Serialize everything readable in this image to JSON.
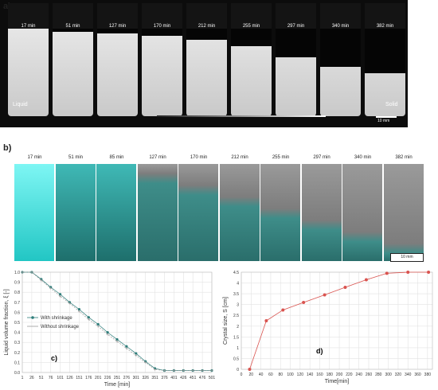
{
  "panel_labels": {
    "a": "a)",
    "b": "b)",
    "c": "c)",
    "d": "d)"
  },
  "panel_a": {
    "times": [
      "17 min",
      "51 min",
      "127 min",
      "170 min",
      "212 min",
      "255 min",
      "297 min",
      "340 min",
      "382 min"
    ],
    "liquid_label": "Liquid",
    "solid_label": "Solid",
    "scale_label": "10 mm"
  },
  "panel_b": {
    "times": [
      "17 min",
      "51 min",
      "85 min",
      "127 min",
      "170 min",
      "212 min",
      "255 min",
      "297 min",
      "340 min",
      "382 min"
    ],
    "scale_label": "10 mm"
  },
  "chart_data": [
    {
      "type": "line",
      "ylabel": "Liquid volume fraction, ξ [-]",
      "xlabel": "Time [min]",
      "ylim": [
        0,
        1.0
      ],
      "yticks": [
        "0.0",
        "0.1",
        "0.2",
        "0.3",
        "0.4",
        "0.5",
        "0.6",
        "0.7",
        "0.8",
        "0.9",
        "1.0"
      ],
      "xticks": [
        "1",
        "26",
        "51",
        "76",
        "101",
        "126",
        "151",
        "176",
        "201",
        "226",
        "251",
        "276",
        "301",
        "326",
        "351",
        "376",
        "401",
        "426",
        "451",
        "476",
        "501"
      ],
      "legend": "left-middle",
      "grid": true,
      "series": [
        {
          "name": "With shrinkage",
          "color": "#2e7d7a",
          "marker": "dot",
          "x": [
            1,
            26,
            51,
            76,
            101,
            126,
            151,
            176,
            201,
            226,
            251,
            276,
            301,
            326,
            351,
            376,
            401,
            426,
            451,
            476,
            501
          ],
          "values": [
            1.0,
            1.0,
            0.93,
            0.85,
            0.78,
            0.7,
            0.63,
            0.55,
            0.48,
            0.4,
            0.33,
            0.26,
            0.19,
            0.11,
            0.04,
            0.02,
            0.02,
            0.02,
            0.02,
            0.02,
            0.02
          ]
        },
        {
          "name": "Without shrinkage",
          "color": "#9a9a9a",
          "marker": "plus",
          "x": [
            1,
            26,
            51,
            76,
            101,
            126,
            151,
            176,
            201,
            226,
            251,
            276,
            301,
            326,
            351,
            376,
            401,
            426,
            451,
            476,
            501
          ],
          "values": [
            1.0,
            1.0,
            0.92,
            0.84,
            0.76,
            0.69,
            0.61,
            0.53,
            0.46,
            0.38,
            0.31,
            0.24,
            0.17,
            0.1,
            0.03,
            0.02,
            0.02,
            0.02,
            0.02,
            0.02,
            0.02
          ]
        }
      ]
    },
    {
      "type": "line",
      "ylabel": "Crystal size, S [cm]",
      "xlabel": "Time[min]",
      "xlim": [
        0,
        390
      ],
      "ylim": [
        0,
        4.5
      ],
      "xticks": [
        "0",
        "20",
        "40",
        "60",
        "80",
        "100",
        "120",
        "140",
        "160",
        "180",
        "200",
        "220",
        "240",
        "260",
        "280",
        "300",
        "320",
        "340",
        "360",
        "380"
      ],
      "yticks": [
        "0",
        "0.5",
        "1",
        "1.5",
        "2",
        "2.5",
        "3",
        "3.5",
        "4",
        "4.5"
      ],
      "grid": true,
      "series": [
        {
          "color": "#d9534f",
          "x": [
            17,
            51,
            85,
            127,
            170,
            212,
            255,
            297,
            340,
            382
          ],
          "values": [
            0.0,
            2.25,
            2.75,
            3.1,
            3.45,
            3.8,
            4.15,
            4.45,
            4.5,
            4.5
          ]
        }
      ]
    }
  ]
}
